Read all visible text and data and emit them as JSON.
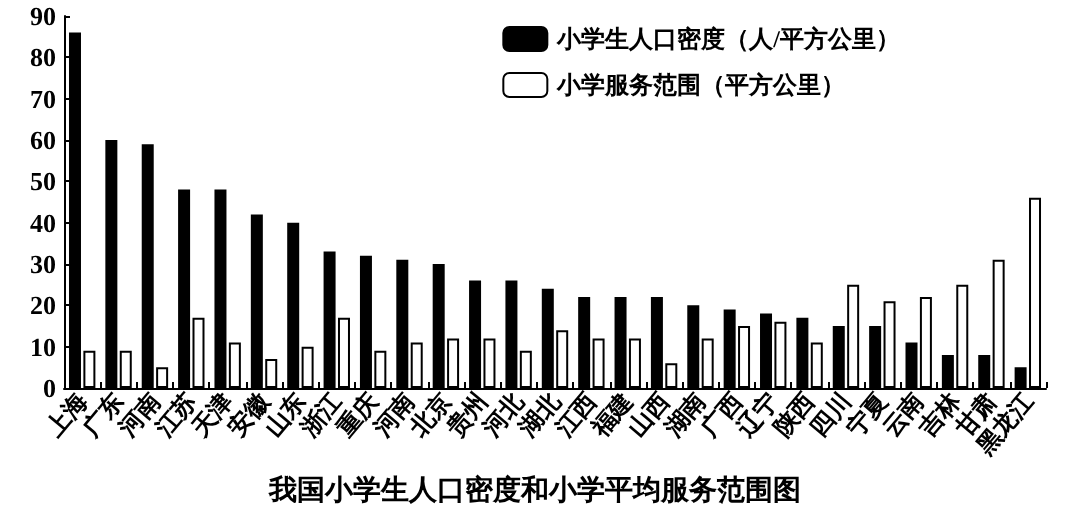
{
  "chart_data": {
    "type": "bar",
    "title": "我国小学生人口密度和小学平均服务范围图",
    "categories": [
      "上海",
      "广东",
      "河南",
      "江苏",
      "天津",
      "安徽",
      "山东",
      "浙江",
      "重庆",
      "河南",
      "北京",
      "贵州",
      "河北",
      "湖北",
      "江西",
      "福建",
      "山西",
      "湖南",
      "广西",
      "辽宁",
      "陕西",
      "四川",
      "宁夏",
      "云南",
      "吉林",
      "甘肃",
      "黑龙江"
    ],
    "series": [
      {
        "name": "小学生人口密度（人/平方公里）",
        "color": "#000000",
        "values": [
          86,
          60,
          59,
          48,
          48,
          42,
          40,
          33,
          32,
          31,
          30,
          26,
          26,
          24,
          22,
          22,
          22,
          20,
          19,
          18,
          17,
          15,
          15,
          11,
          8,
          8,
          5
        ]
      },
      {
        "name": "小学服务范围（平方公里）",
        "color": "#ffffff",
        "values": [
          9,
          9,
          5,
          17,
          11,
          7,
          10,
          17,
          9,
          11,
          12,
          12,
          9,
          14,
          12,
          12,
          6,
          12,
          15,
          16,
          11,
          25,
          21,
          22,
          25,
          31,
          46
        ]
      }
    ],
    "ylim": [
      0,
      90
    ],
    "yticks": [
      0,
      10,
      20,
      30,
      40,
      50,
      60,
      70,
      80,
      90
    ],
    "grid": false,
    "legend": "top right"
  }
}
